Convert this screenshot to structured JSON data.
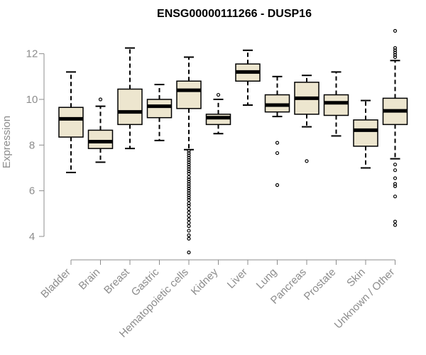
{
  "chart_data": {
    "type": "box",
    "title": "ENSG00000111266 - DUSP16",
    "xlabel": "",
    "ylabel": "Expression",
    "ylim": [
      3,
      13.3
    ],
    "yticks": [
      4,
      6,
      8,
      10,
      12
    ],
    "grid": false,
    "colors": {
      "box_fill": "#ede6cf",
      "box_stroke": "#000000",
      "median": "#000000",
      "axis": "#8c8c8c"
    },
    "categories": [
      "Bladder",
      "Brain",
      "Breast",
      "Gastric",
      "Hematopoietic cells",
      "Kidney",
      "Liver",
      "Lung",
      "Pancreas",
      "Prostate",
      "Skin",
      "Unknown / Other"
    ],
    "boxes": [
      {
        "category": "Bladder",
        "whisker_low": 6.8,
        "q1": 8.35,
        "median": 9.15,
        "q3": 9.65,
        "whisker_high": 11.2,
        "outliers": []
      },
      {
        "category": "Brain",
        "whisker_low": 7.25,
        "q1": 7.85,
        "median": 8.15,
        "q3": 8.65,
        "whisker_high": 9.7,
        "outliers": [
          10.0
        ]
      },
      {
        "category": "Breast",
        "whisker_low": 7.85,
        "q1": 8.9,
        "median": 9.45,
        "q3": 10.45,
        "whisker_high": 12.25,
        "outliers": []
      },
      {
        "category": "Gastric",
        "whisker_low": 8.2,
        "q1": 9.2,
        "median": 9.7,
        "q3": 10.0,
        "whisker_high": 10.65,
        "outliers": []
      },
      {
        "category": "Hematopoietic cells",
        "whisker_low": 7.8,
        "q1": 9.6,
        "median": 10.4,
        "q3": 10.8,
        "whisker_high": 11.85,
        "outliers": [
          7.75,
          7.65,
          7.55,
          7.45,
          7.35,
          7.25,
          7.15,
          7.05,
          6.95,
          6.85,
          6.75,
          6.6,
          6.5,
          6.4,
          6.3,
          6.2,
          6.1,
          6.0,
          5.9,
          5.8,
          5.7,
          5.6,
          5.45,
          5.35,
          5.2,
          5.05,
          4.9,
          4.75,
          4.6,
          4.45,
          4.25,
          4.05,
          3.9,
          3.3
        ]
      },
      {
        "category": "Kidney",
        "whisker_low": 8.5,
        "q1": 8.9,
        "median": 9.2,
        "q3": 9.35,
        "whisker_high": 10.0,
        "outliers": [
          10.2
        ]
      },
      {
        "category": "Liver",
        "whisker_low": 9.75,
        "q1": 10.8,
        "median": 11.2,
        "q3": 11.55,
        "whisker_high": 12.15,
        "outliers": []
      },
      {
        "category": "Lung",
        "whisker_low": 9.25,
        "q1": 9.45,
        "median": 9.75,
        "q3": 10.2,
        "whisker_high": 11.0,
        "outliers": [
          8.1,
          7.65,
          6.25
        ]
      },
      {
        "category": "Pancreas",
        "whisker_low": 8.8,
        "q1": 9.35,
        "median": 10.05,
        "q3": 10.75,
        "whisker_high": 11.05,
        "outliers": [
          7.3
        ]
      },
      {
        "category": "Prostate",
        "whisker_low": 8.4,
        "q1": 9.3,
        "median": 9.85,
        "q3": 10.2,
        "whisker_high": 11.2,
        "outliers": []
      },
      {
        "category": "Skin",
        "whisker_low": 7.0,
        "q1": 7.95,
        "median": 8.65,
        "q3": 9.1,
        "whisker_high": 9.95,
        "outliers": []
      },
      {
        "category": "Unknown / Other",
        "whisker_low": 7.4,
        "q1": 8.9,
        "median": 9.5,
        "q3": 10.05,
        "whisker_high": 11.7,
        "outliers": [
          13.0,
          12.25,
          12.15,
          12.05,
          11.95,
          11.85,
          7.15,
          6.9,
          6.55,
          6.3,
          6.2,
          5.75,
          4.65,
          4.5
        ]
      }
    ]
  }
}
